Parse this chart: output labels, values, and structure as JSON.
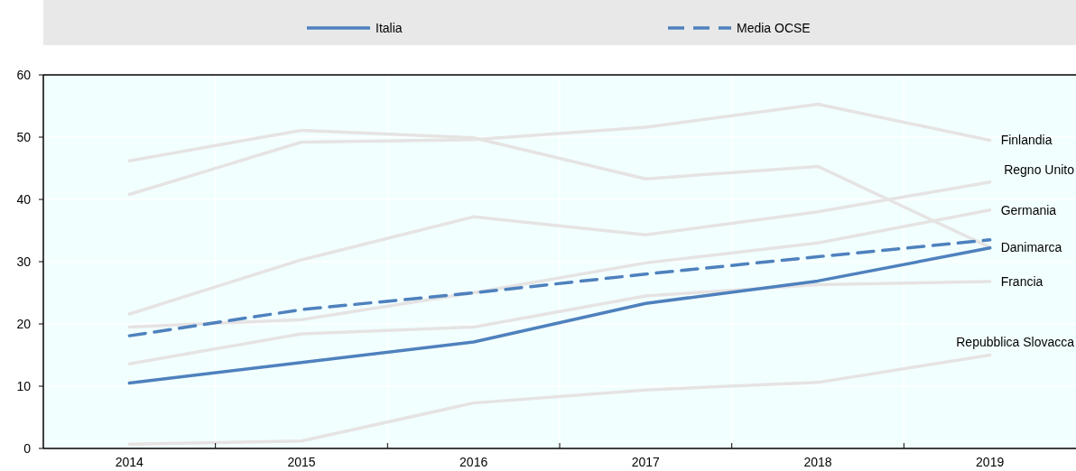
{
  "chart_data": {
    "type": "line",
    "categories": [
      "2014",
      "2015",
      "2016",
      "2017",
      "2018",
      "2019"
    ],
    "ylim": [
      0,
      60
    ],
    "yticks": [
      0,
      10,
      20,
      30,
      40,
      50,
      60
    ],
    "grid": true,
    "legend": "top",
    "line_style": "solid",
    "series": [
      {
        "name": "Finlandia",
        "color": "#e6e3e3",
        "values": [
          40.8,
          49.2,
          49.6,
          51.6,
          55.3,
          49.5
        ]
      },
      {
        "name": "Danimarca",
        "color": "#e6e3e3",
        "values": [
          46.2,
          51.1,
          49.9,
          43.3,
          45.3,
          32.3
        ]
      },
      {
        "name": "Regno Unito",
        "color": "#e6e3e3",
        "values": [
          21.6,
          30.3,
          37.2,
          34.3,
          38.0,
          42.8
        ]
      },
      {
        "name": "Germania",
        "color": "#e6e3e3",
        "values": [
          19.5,
          20.7,
          25.0,
          29.8,
          33.0,
          38.3
        ]
      },
      {
        "name": "Francia",
        "color": "#e6e3e3",
        "values": [
          13.6,
          18.4,
          19.5,
          24.5,
          26.3,
          26.8
        ]
      },
      {
        "name": "Repubblica Slovacca",
        "color": "#e6e3e3",
        "values": [
          0.7,
          1.2,
          7.3,
          9.4,
          10.6,
          15.0
        ]
      },
      {
        "name": "Italia",
        "color": "#4e81bd",
        "values": [
          10.5,
          13.8,
          17.1,
          23.3,
          26.9,
          32.2
        ]
      },
      {
        "name": "Media OCSE",
        "color": "#4e81bd",
        "values": [
          18.1,
          22.3,
          25.0,
          28.0,
          30.8,
          33.5
        ],
        "line_style": "dashed"
      }
    ]
  }
}
